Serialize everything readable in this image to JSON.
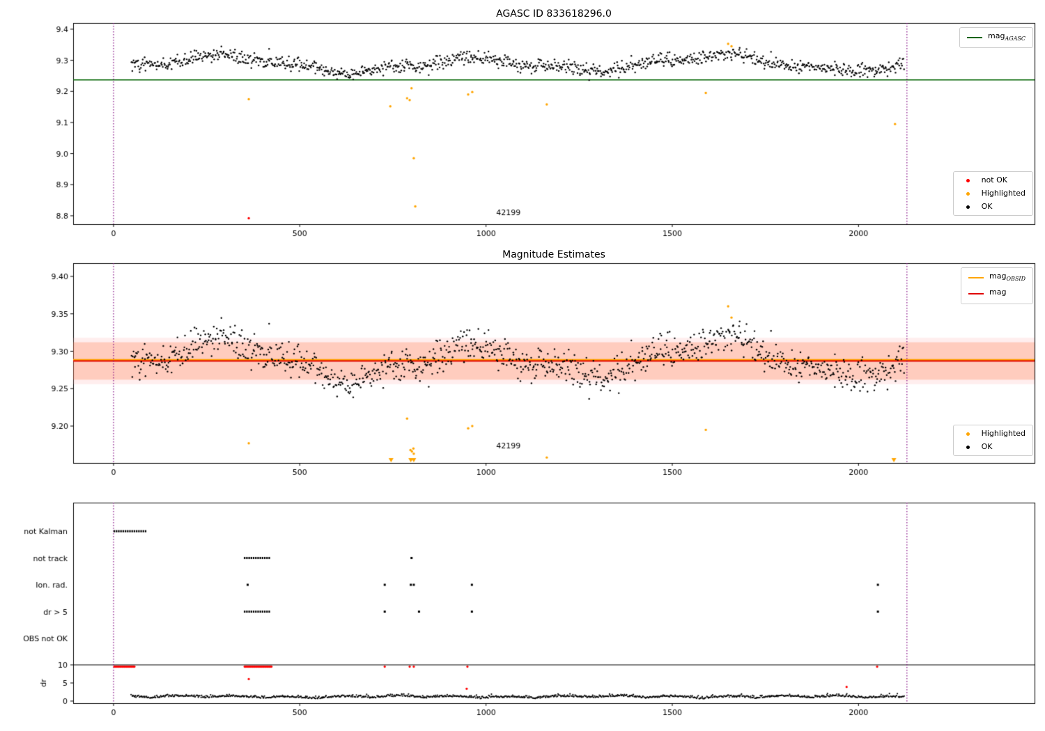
{
  "titles": {
    "top": "AGASC ID 833618296.0",
    "middle": "Magnitude Estimates"
  },
  "legends": {
    "top_line": {
      "items": [
        {
          "text": "mag",
          "sub": "AGASC",
          "color": "#006400"
        }
      ]
    },
    "top_markers": {
      "items": [
        {
          "label": "not OK",
          "color": "#ff0000"
        },
        {
          "label": "Highlighted",
          "color": "#ffa500"
        },
        {
          "label": "OK",
          "color": "#000000"
        }
      ]
    },
    "mid_lines": {
      "items": [
        {
          "text": "mag",
          "sub": "OBSID",
          "color": "#ffa500"
        },
        {
          "text": "mag",
          "sub": "",
          "color": "#e00000"
        }
      ]
    },
    "mid_markers": {
      "items": [
        {
          "label": "Highlighted",
          "color": "#ffa500"
        },
        {
          "label": "OK",
          "color": "#000000"
        }
      ]
    }
  },
  "chart_data": [
    {
      "type": "scatter",
      "title": "AGASC ID 833618296.0",
      "xlim": [
        -108.5,
        2472.6
      ],
      "ylim": [
        8.773,
        9.42
      ],
      "xticks": [
        0,
        500,
        1000,
        1500,
        2000
      ],
      "xticklabels": [
        "0",
        "500",
        "1000",
        "1500",
        "2000"
      ],
      "yticks": [
        8.8,
        8.9,
        9.0,
        9.1,
        9.2,
        9.3,
        9.4
      ],
      "yticklabels": [
        "8.8",
        "8.9",
        "9.0",
        "9.1",
        "9.2",
        "9.3",
        "9.4"
      ],
      "hline": {
        "y": 9.237,
        "color": "#006400",
        "width": 1.6,
        "label": "mag_AGASC"
      },
      "vlines": {
        "x": [
          0,
          2130
        ],
        "color": "#800080",
        "style": "dotted"
      },
      "annotation": {
        "text": "42199",
        "x": 1060,
        "y": 8.802
      },
      "ok_series": {
        "name": "OK",
        "color": "#000000",
        "generator": {
          "seed": 42,
          "n": 1080,
          "x_start": 48,
          "x_end": 2122,
          "base": 9.288,
          "waves": [
            [
              0.02,
              105,
              -1.286
            ],
            [
              0.007,
              37,
              0.5
            ],
            [
              0.006,
              233,
              1.0
            ]
          ],
          "sigma": 0.011,
          "ymin": 9.223,
          "ymax": 9.362
        }
      },
      "highlighted": {
        "name": "Highlighted",
        "color": "#ffa500",
        "points": [
          [
            363,
            9.175
          ],
          [
            743,
            9.152
          ],
          [
            788,
            9.178
          ],
          [
            795,
            9.172
          ],
          [
            800,
            9.21
          ],
          [
            806,
            8.985
          ],
          [
            810,
            8.83
          ],
          [
            952,
            9.19
          ],
          [
            963,
            9.198
          ],
          [
            1163,
            9.158
          ],
          [
            1590,
            9.195
          ],
          [
            1650,
            9.353
          ],
          [
            1659,
            9.345
          ],
          [
            2098,
            9.095
          ]
        ]
      },
      "not_ok": {
        "name": "not OK",
        "color": "#ff0000",
        "points": [
          [
            363,
            8.792
          ]
        ]
      }
    },
    {
      "type": "scatter",
      "title": "Magnitude Estimates",
      "xlim": [
        -108.5,
        2472.6
      ],
      "ylim": [
        9.1507,
        9.4177
      ],
      "xticks": [
        0,
        500,
        1000,
        1500,
        2000
      ],
      "xticklabels": [
        "0",
        "500",
        "1000",
        "1500",
        "2000"
      ],
      "yticks": [
        9.2,
        9.25,
        9.3,
        9.35,
        9.4
      ],
      "yticklabels": [
        "9.20",
        "9.25",
        "9.30",
        "9.35",
        "9.40"
      ],
      "band_outer": {
        "y0": 9.256,
        "y1": 9.318,
        "color": "rgba(255,160,160,0.18)"
      },
      "band": {
        "y0": 9.262,
        "y1": 9.312,
        "color": "rgba(255,120,70,0.28)"
      },
      "hlines": [
        {
          "y": 9.2885,
          "color": "#ffa500",
          "width": 2.4,
          "label": "mag_OBSID"
        },
        {
          "y": 9.287,
          "color": "#e00000",
          "width": 1.8,
          "label": "mag"
        }
      ],
      "vlines": {
        "x": [
          0,
          2130
        ],
        "color": "#800080",
        "style": "dotted"
      },
      "annotation": {
        "text": "42199",
        "x": 1060,
        "y": 9.17
      },
      "ok_series": {
        "name": "OK",
        "color": "#000000",
        "generator": {
          "seed": 42,
          "n": 1080,
          "x_start": 48,
          "x_end": 2122,
          "base": 9.288,
          "waves": [
            [
              0.02,
              105,
              -1.286
            ],
            [
              0.007,
              37,
              0.5
            ],
            [
              0.006,
              233,
              1.0
            ]
          ],
          "sigma": 0.011,
          "ymin": 9.223,
          "ymax": 9.362
        }
      },
      "highlighted": {
        "name": "Highlighted",
        "color": "#ffa500",
        "points": [
          [
            363,
            9.177
          ],
          [
            788,
            9.21
          ],
          [
            797,
            9.168
          ],
          [
            801,
            9.166
          ],
          [
            805,
            9.17
          ],
          [
            806,
            9.163
          ],
          [
            952,
            9.197
          ],
          [
            963,
            9.2
          ],
          [
            1163,
            9.158
          ],
          [
            1590,
            9.195
          ],
          [
            1650,
            9.36
          ],
          [
            1659,
            9.345
          ]
        ]
      },
      "clipped_markers": {
        "color": "#ffa500",
        "xs": [
          745,
          798,
          806,
          2095
        ]
      }
    },
    {
      "type": "flags",
      "xlim": [
        -108.5,
        2472.6
      ],
      "xticks": [
        0,
        500,
        1000,
        1500,
        2000
      ],
      "xticklabels": [
        "0",
        "500",
        "1000",
        "1500",
        "2000"
      ],
      "rows": [
        "not Kalman",
        "not track",
        "Ion. rad.",
        "dr > 5",
        "OBS not OK"
      ],
      "flags": {
        "not Kalman": {
          "ranges": [
            [
              2,
              88
            ]
          ],
          "points": []
        },
        "not track": {
          "ranges": [
            [
              352,
              422
            ]
          ],
          "points": [
            800
          ]
        },
        "Ion. rad.": {
          "ranges": [],
          "points": [
            360,
            728,
            798,
            806,
            962,
            2052
          ]
        },
        "dr > 5": {
          "ranges": [
            [
              352,
              422
            ]
          ],
          "points": [
            728,
            820,
            962,
            2052
          ]
        },
        "OBS not OK": {
          "ranges": [],
          "points": []
        }
      },
      "dr_axis": {
        "label": "dr",
        "ticks": [
          10,
          5,
          0
        ],
        "ticklabels": [
          "10",
          "5",
          "0"
        ],
        "hline": 10
      },
      "dr_series": {
        "color": "#000000",
        "generator": {
          "seed": 7,
          "n": 980,
          "x_start": 48,
          "x_end": 2122,
          "base": 0.55,
          "waves": [
            [
              0.45,
              47,
              1.0
            ],
            [
              0.3,
              173,
              0.2
            ]
          ],
          "sigma": 0.42,
          "ymin": 0.05,
          "ymax": 3.3,
          "abs": true
        }
      },
      "dr_red": {
        "color": "#ff0000",
        "clip_value": 9.5,
        "clipped_ranges": [
          [
            2,
            58
          ],
          [
            352,
            425
          ]
        ],
        "clipped_points": [
          728,
          795,
          806,
          950,
          2050
        ],
        "points": [
          [
            363,
            6.1
          ],
          [
            948,
            3.4
          ],
          [
            1968,
            3.9
          ]
        ]
      },
      "vlines": {
        "x": [
          0,
          2130
        ],
        "color": "#800080",
        "style": "dotted"
      }
    }
  ]
}
